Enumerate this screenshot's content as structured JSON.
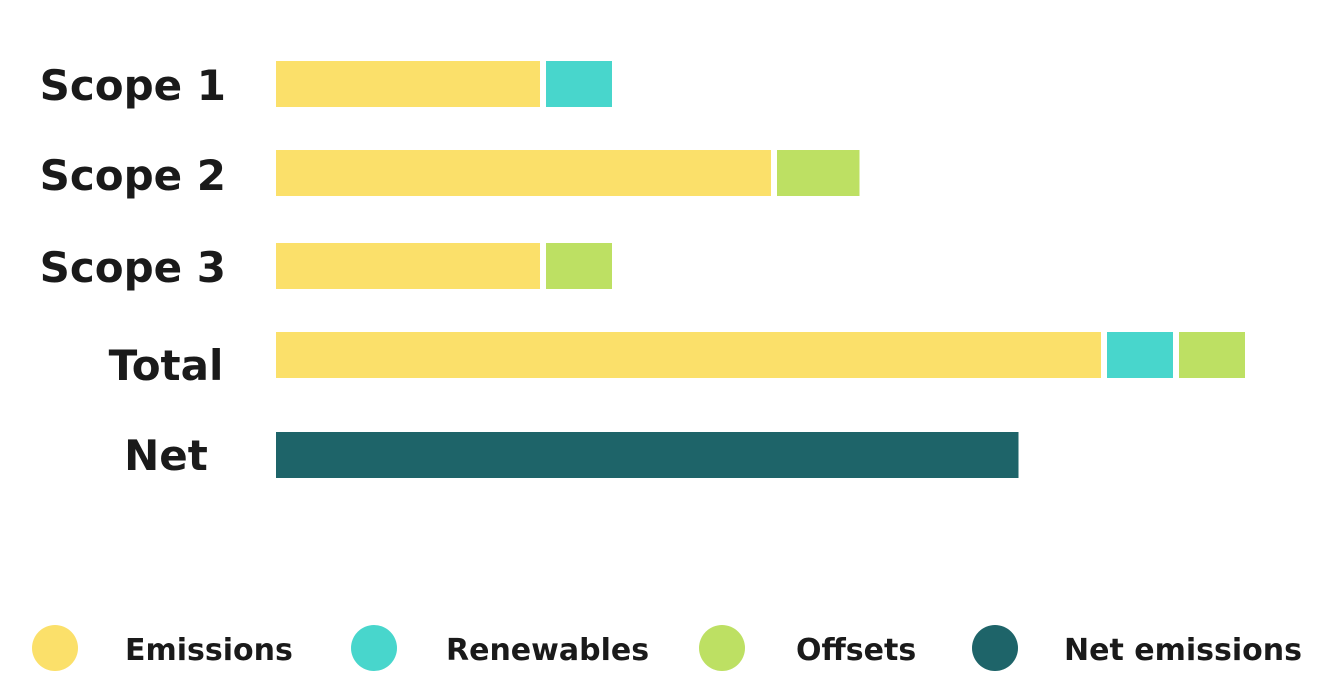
{
  "chart_data": {
    "type": "bar",
    "orientation": "horizontal",
    "stacked": true,
    "categories": [
      "Scope 1",
      "Scope 2",
      "Scope 3",
      "Total",
      "Net"
    ],
    "series": [
      {
        "name": "Emissions",
        "color": "#fbe06a",
        "values": [
          4,
          7.5,
          4,
          12.5,
          0
        ]
      },
      {
        "name": "Renewables",
        "color": "#48d6cc",
        "values": [
          1,
          0,
          0,
          1,
          0
        ]
      },
      {
        "name": "Offsets",
        "color": "#bde063",
        "values": [
          0,
          1.25,
          1,
          1,
          0
        ]
      },
      {
        "name": "Net emissions",
        "color": "#1e6469",
        "values": [
          0,
          0,
          0,
          0,
          11.25
        ]
      }
    ],
    "title": "",
    "xlabel": "",
    "ylabel": "",
    "xlim": [
      0,
      15
    ],
    "grid": false,
    "axis_visible": false,
    "legend_position": "bottom"
  }
}
